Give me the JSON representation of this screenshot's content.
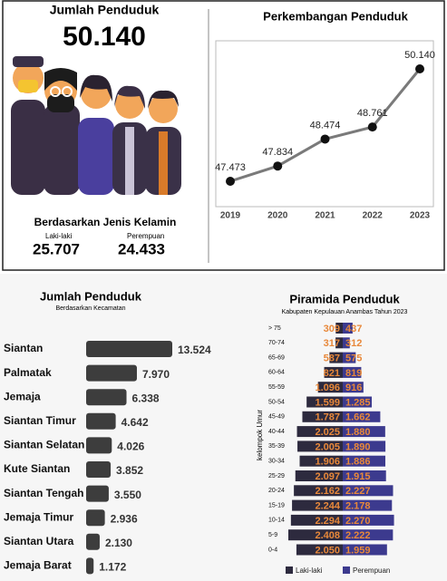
{
  "summary": {
    "title": "Jumlah Penduduk",
    "total": "50.140",
    "gender_heading": "Berdasarkan Jenis Kelamin",
    "male_label": "Laki-laki",
    "male": "25.707",
    "female_label": "Perempuan",
    "female": "24.433"
  },
  "chart_data": [
    {
      "type": "line",
      "title": "Perkembangan Penduduk",
      "categories": [
        "2019",
        "2020",
        "2021",
        "2022",
        "2023"
      ],
      "values": [
        47473,
        47834,
        48474,
        48761,
        50140
      ],
      "value_labels": [
        "47.473",
        "47.834",
        "48.474",
        "48.761",
        "50.140"
      ],
      "color": "#7a7a7a"
    },
    {
      "type": "bar",
      "orientation": "horizontal",
      "title": "Jumlah Penduduk",
      "subtitle": "Berdasarkan Kecamatan",
      "categories": [
        "Siantan",
        "Palmatak",
        "Jemaja",
        "Siantan Timur",
        "Siantan Selatan",
        "Kute Siantan",
        "Siantan Tengah",
        "Jemaja Timur",
        "Siantan Utara",
        "Jemaja Barat"
      ],
      "values": [
        13524,
        7970,
        6338,
        4642,
        4026,
        3852,
        3550,
        2936,
        2130,
        1172
      ],
      "value_labels": [
        "13.524",
        "7.970",
        "6.338",
        "4.642",
        "4.026",
        "3.852",
        "3.550",
        "2.936",
        "2.130",
        "1.172"
      ],
      "color": "#3d3d3d"
    },
    {
      "type": "pyramid",
      "title": "Piramida Penduduk",
      "subtitle": "Kabupaten Kepulauan Anambas Tahun 2023",
      "y_label": "kelompok Umur",
      "categories": [
        "> 75",
        "70-74",
        "65-69",
        "60-64",
        "55-59",
        "50-54",
        "45-49",
        "40-44",
        "35-39",
        "30-34",
        "25-29",
        "20-24",
        "15-19",
        "10-14",
        "5-9",
        "0-4"
      ],
      "label_color": "#e8883a",
      "series": [
        {
          "name": "Laki-laki",
          "color": "#2d2a3e",
          "values": [
            309,
            317,
            587,
            821,
            1096,
            1599,
            1787,
            2025,
            2005,
            1906,
            2097,
            2162,
            2244,
            2294,
            2408,
            2050
          ],
          "value_labels": [
            "309",
            "317",
            "587",
            "821",
            "1.096",
            "1.599",
            "1.787",
            "2.025",
            "2.005",
            "1.906",
            "2.097",
            "2.162",
            "2.244",
            "2.294",
            "2.408",
            "2.050"
          ]
        },
        {
          "name": "Perempuan",
          "color": "#3c3a8e",
          "values": [
            437,
            312,
            575,
            819,
            916,
            1285,
            1662,
            1880,
            1890,
            1886,
            1915,
            2227,
            2178,
            2270,
            2222,
            1959
          ],
          "value_labels": [
            "437",
            "312",
            "575",
            "819",
            "916",
            "1.285",
            "1.662",
            "1.880",
            "1.890",
            "1.886",
            "1.915",
            "2.227",
            "2.178",
            "2.270",
            "2.222",
            "1.959"
          ]
        }
      ]
    }
  ]
}
